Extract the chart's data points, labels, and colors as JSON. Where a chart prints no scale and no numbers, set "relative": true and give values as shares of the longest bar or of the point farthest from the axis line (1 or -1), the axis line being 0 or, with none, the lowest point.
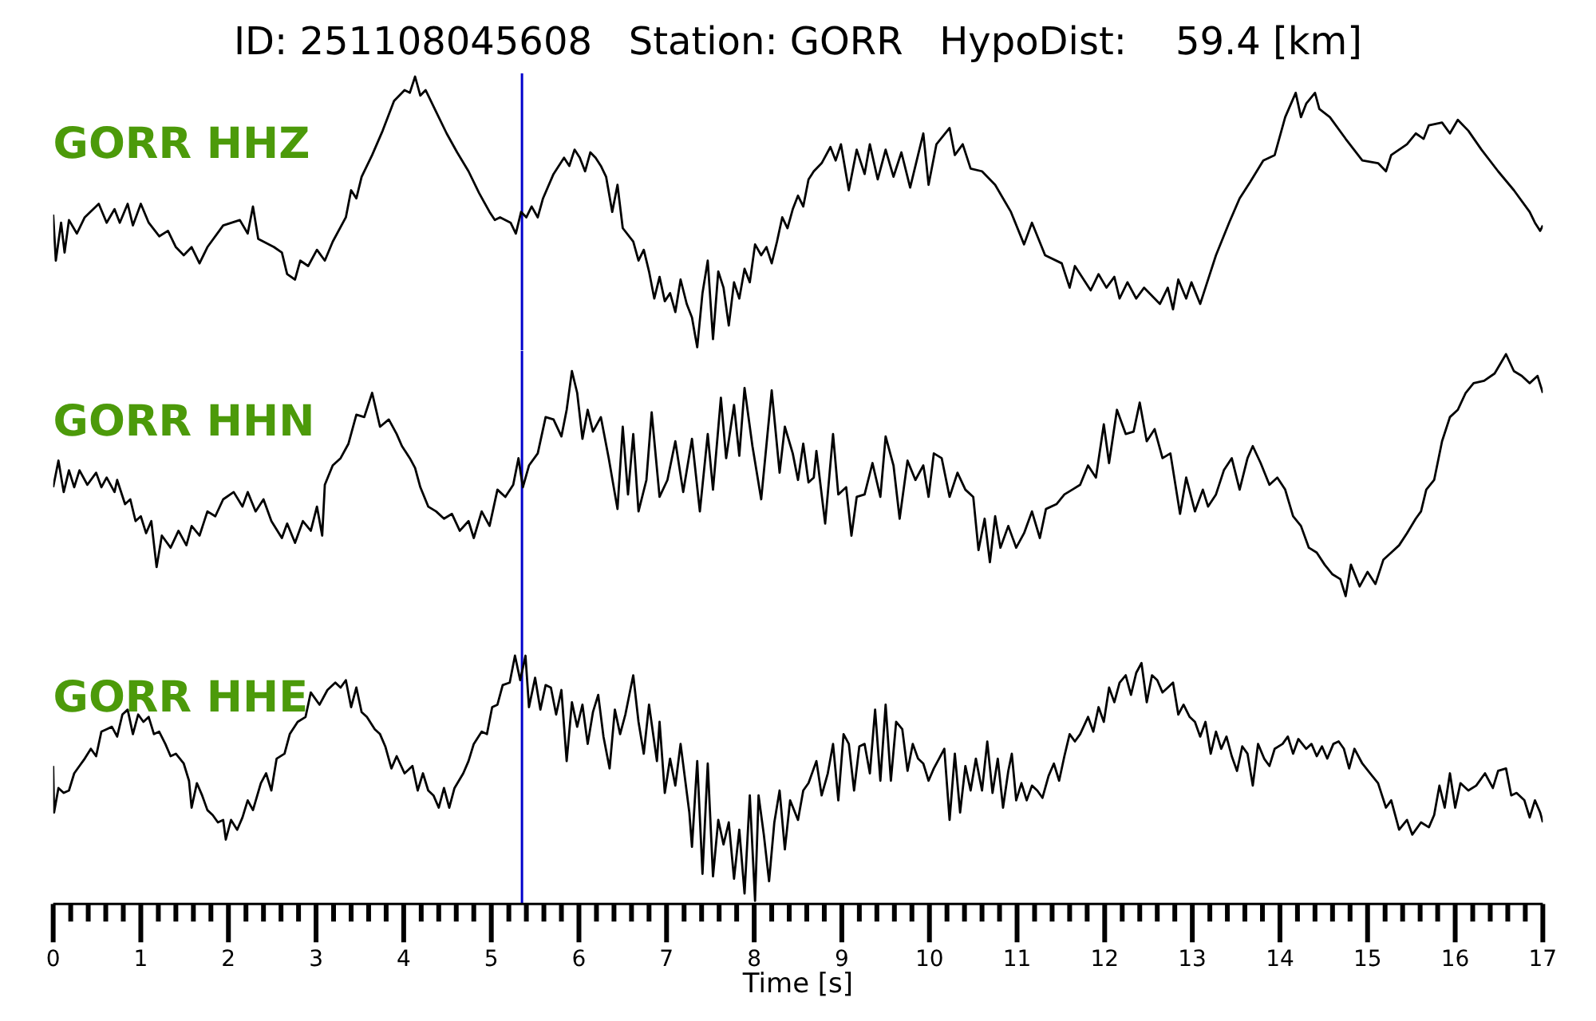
{
  "chart_data": [
    {
      "type": "line",
      "title": "ID: 251108045608   Station: GORR   HypoDist:    59.4 [km]",
      "annotations": [
        "GORR HHZ"
      ],
      "relative": true,
      "xlim": [
        0,
        17
      ],
      "tick_labels": false,
      "ref_lines": [
        {
          "axis": "x",
          "value": 5.35,
          "color": "#0000cc"
        }
      ],
      "series": [
        {
          "color": "#000000",
          "x": [
            0,
            0.03,
            0.09,
            0.13,
            0.18,
            0.27,
            0.36,
            0.52,
            0.61,
            0.7,
            0.76,
            0.85,
            0.91,
            1,
            1.09,
            1.21,
            1.31,
            1.4,
            1.49,
            1.58,
            1.67,
            1.76,
            1.94,
            2.13,
            2.22,
            2.28,
            2.34,
            2.52,
            2.61,
            2.67,
            2.76,
            2.82,
            2.91,
            3.01,
            3.1,
            3.19,
            3.34,
            3.4,
            3.46,
            3.52,
            3.64,
            3.76,
            3.89,
            4.01,
            4.07,
            4.13,
            4.19,
            4.25,
            4.37,
            4.49,
            4.61,
            4.74,
            4.86,
            4.98,
            5.04,
            5.1,
            5.22,
            5.28,
            5.34,
            5.4,
            5.46,
            5.53,
            5.59,
            5.71,
            5.83,
            5.89,
            5.95,
            6.01,
            6.07,
            6.13,
            6.19,
            6.25,
            6.31,
            6.38,
            6.44,
            6.5,
            6.62,
            6.68,
            6.74,
            6.8,
            6.86,
            6.92,
            6.98,
            7.04,
            7.1,
            7.16,
            7.23,
            7.29,
            7.35,
            7.41,
            7.47,
            7.53,
            7.59,
            7.65,
            7.71,
            7.77,
            7.83,
            7.89,
            7.95,
            8.01,
            8.08,
            8.14,
            8.2,
            8.26,
            8.32,
            8.38,
            8.44,
            8.5,
            8.56,
            8.62,
            8.68,
            8.77,
            8.87,
            8.93,
            8.99,
            9.08,
            9.17,
            9.26,
            9.32,
            9.41,
            9.5,
            9.59,
            9.68,
            9.78,
            9.87,
            9.93,
            9.99,
            10.08,
            10.23,
            10.29,
            10.38,
            10.47,
            10.6,
            10.75,
            10.93,
            11.08,
            11.17,
            11.32,
            11.51,
            11.6,
            11.66,
            11.84,
            11.93,
            12.02,
            12.11,
            12.17,
            12.26,
            12.36,
            12.45,
            12.63,
            12.72,
            12.78,
            12.84,
            12.93,
            12.99,
            13.09,
            13.15,
            13.27,
            13.42,
            13.54,
            13.66,
            13.81,
            13.94,
            14.06,
            14.18,
            14.24,
            14.3,
            14.4,
            14.45,
            14.57,
            14.75,
            14.94,
            15.12,
            15.21,
            15.27,
            15.45,
            15.55,
            15.64,
            15.7,
            15.85,
            15.94,
            16.03,
            16.15,
            16.3,
            16.49,
            16.67,
            16.85,
            16.91,
            16.97,
            17
          ],
          "values": [
            0.49,
            0.32,
            0.46,
            0.35,
            0.47,
            0.42,
            0.48,
            0.53,
            0.46,
            0.51,
            0.46,
            0.53,
            0.45,
            0.53,
            0.46,
            0.41,
            0.43,
            0.37,
            0.34,
            0.37,
            0.31,
            0.37,
            0.45,
            0.47,
            0.42,
            0.52,
            0.4,
            0.37,
            0.35,
            0.27,
            0.25,
            0.32,
            0.3,
            0.36,
            0.32,
            0.39,
            0.48,
            0.58,
            0.55,
            0.63,
            0.71,
            0.8,
            0.91,
            0.95,
            0.94,
            1,
            0.93,
            0.95,
            0.87,
            0.79,
            0.72,
            0.65,
            0.57,
            0.5,
            0.47,
            0.48,
            0.46,
            0.42,
            0.5,
            0.48,
            0.52,
            0.48,
            0.55,
            0.64,
            0.7,
            0.67,
            0.73,
            0.7,
            0.65,
            0.72,
            0.7,
            0.67,
            0.63,
            0.5,
            0.6,
            0.44,
            0.39,
            0.32,
            0.36,
            0.28,
            0.18,
            0.26,
            0.17,
            0.2,
            0.13,
            0.25,
            0.16,
            0.11,
            0,
            0.2,
            0.32,
            0.03,
            0.28,
            0.22,
            0.08,
            0.24,
            0.18,
            0.29,
            0.24,
            0.38,
            0.34,
            0.37,
            0.31,
            0.39,
            0.48,
            0.44,
            0.51,
            0.56,
            0.52,
            0.62,
            0.65,
            0.68,
            0.74,
            0.69,
            0.75,
            0.58,
            0.73,
            0.64,
            0.75,
            0.62,
            0.73,
            0.63,
            0.72,
            0.59,
            0.71,
            0.79,
            0.6,
            0.75,
            0.81,
            0.71,
            0.75,
            0.66,
            0.65,
            0.6,
            0.5,
            0.38,
            0.46,
            0.34,
            0.31,
            0.22,
            0.3,
            0.21,
            0.27,
            0.22,
            0.26,
            0.18,
            0.24,
            0.18,
            0.22,
            0.16,
            0.22,
            0.14,
            0.25,
            0.18,
            0.24,
            0.16,
            0.22,
            0.34,
            0.46,
            0.55,
            0.61,
            0.69,
            0.71,
            0.85,
            0.94,
            0.85,
            0.9,
            0.94,
            0.88,
            0.85,
            0.77,
            0.69,
            0.68,
            0.65,
            0.71,
            0.75,
            0.79,
            0.77,
            0.82,
            0.83,
            0.79,
            0.84,
            0.8,
            0.73,
            0.65,
            0.58,
            0.5,
            0.46,
            0.43,
            0.45
          ]
        }
      ]
    },
    {
      "type": "line",
      "annotations": [
        "GORR HHN"
      ],
      "relative": true,
      "xlim": [
        0,
        17
      ],
      "tick_labels": false,
      "ref_lines": [
        {
          "axis": "x",
          "value": 5.35,
          "color": "#0000cc"
        }
      ],
      "series": [
        {
          "color": "#000000",
          "x": [
            0,
            0.06,
            0.12,
            0.18,
            0.24,
            0.3,
            0.39,
            0.49,
            0.55,
            0.61,
            0.7,
            0.73,
            0.82,
            0.88,
            0.94,
            1,
            1.06,
            1.12,
            1.18,
            1.24,
            1.34,
            1.43,
            1.52,
            1.58,
            1.67,
            1.76,
            1.85,
            1.94,
            2.06,
            2.16,
            2.22,
            2.31,
            2.4,
            2.49,
            2.61,
            2.67,
            2.76,
            2.85,
            2.94,
            3.01,
            3.07,
            3.1,
            3.19,
            3.28,
            3.37,
            3.46,
            3.55,
            3.64,
            3.73,
            3.83,
            3.92,
            3.98,
            4.07,
            4.13,
            4.19,
            4.28,
            4.37,
            4.46,
            4.55,
            4.64,
            4.74,
            4.8,
            4.89,
            4.98,
            5.07,
            5.16,
            5.25,
            5.31,
            5.36,
            5.43,
            5.53,
            5.62,
            5.71,
            5.8,
            5.86,
            5.92,
            5.98,
            6.04,
            6.1,
            6.16,
            6.25,
            6.34,
            6.44,
            6.5,
            6.56,
            6.62,
            6.68,
            6.77,
            6.83,
            6.92,
            7.01,
            7.1,
            7.19,
            7.29,
            7.38,
            7.47,
            7.53,
            7.62,
            7.68,
            7.77,
            7.83,
            7.89,
            7.98,
            8.08,
            8.2,
            8.29,
            8.35,
            8.44,
            8.5,
            8.56,
            8.62,
            8.68,
            8.71,
            8.81,
            8.9,
            8.96,
            9.05,
            9.11,
            9.17,
            9.26,
            9.35,
            9.44,
            9.5,
            9.59,
            9.66,
            9.75,
            9.84,
            9.93,
            9.99,
            10.05,
            10.14,
            10.23,
            10.32,
            10.41,
            10.5,
            10.56,
            10.63,
            10.69,
            10.75,
            10.81,
            10.9,
            10.99,
            11.08,
            11.17,
            11.26,
            11.33,
            11.45,
            11.54,
            11.63,
            11.72,
            11.81,
            11.9,
            11.99,
            12.05,
            12.14,
            12.24,
            12.33,
            12.4,
            12.48,
            12.57,
            12.66,
            12.75,
            12.86,
            12.93,
            13.03,
            13.12,
            13.18,
            13.27,
            13.36,
            13.45,
            13.54,
            13.63,
            13.69,
            13.78,
            13.88,
            13.97,
            14.06,
            14.15,
            14.24,
            14.33,
            14.42,
            14.51,
            14.6,
            14.69,
            14.75,
            14.81,
            14.91,
            15,
            15.09,
            15.18,
            15.27,
            15.36,
            15.45,
            15.55,
            15.61,
            15.67,
            15.76,
            15.85,
            15.94,
            16.03,
            16.12,
            16.21,
            16.33,
            16.45,
            16.58,
            16.67,
            16.76,
            16.85,
            16.94,
            17
          ],
          "values": [
            0.45,
            0.56,
            0.43,
            0.52,
            0.45,
            0.52,
            0.46,
            0.51,
            0.45,
            0.49,
            0.43,
            0.48,
            0.38,
            0.4,
            0.31,
            0.33,
            0.26,
            0.31,
            0.12,
            0.25,
            0.2,
            0.27,
            0.21,
            0.29,
            0.25,
            0.35,
            0.33,
            0.4,
            0.43,
            0.37,
            0.43,
            0.35,
            0.4,
            0.31,
            0.24,
            0.3,
            0.22,
            0.31,
            0.27,
            0.37,
            0.25,
            0.46,
            0.54,
            0.57,
            0.63,
            0.75,
            0.74,
            0.84,
            0.7,
            0.73,
            0.67,
            0.62,
            0.57,
            0.53,
            0.45,
            0.37,
            0.35,
            0.32,
            0.34,
            0.27,
            0.31,
            0.24,
            0.35,
            0.29,
            0.44,
            0.41,
            0.46,
            0.57,
            0.45,
            0.54,
            0.59,
            0.74,
            0.73,
            0.66,
            0.77,
            0.93,
            0.84,
            0.65,
            0.77,
            0.68,
            0.74,
            0.57,
            0.36,
            0.7,
            0.42,
            0.67,
            0.35,
            0.48,
            0.76,
            0.41,
            0.48,
            0.64,
            0.43,
            0.65,
            0.35,
            0.67,
            0.44,
            0.82,
            0.57,
            0.79,
            0.58,
            0.86,
            0.62,
            0.4,
            0.85,
            0.51,
            0.7,
            0.59,
            0.48,
            0.63,
            0.47,
            0.49,
            0.6,
            0.3,
            0.67,
            0.42,
            0.45,
            0.25,
            0.41,
            0.42,
            0.55,
            0.41,
            0.66,
            0.54,
            0.32,
            0.56,
            0.48,
            0.54,
            0.41,
            0.59,
            0.57,
            0.41,
            0.51,
            0.44,
            0.41,
            0.19,
            0.32,
            0.14,
            0.33,
            0.2,
            0.29,
            0.2,
            0.26,
            0.35,
            0.24,
            0.36,
            0.38,
            0.42,
            0.44,
            0.46,
            0.54,
            0.49,
            0.71,
            0.55,
            0.77,
            0.67,
            0.68,
            0.8,
            0.64,
            0.69,
            0.57,
            0.59,
            0.34,
            0.49,
            0.35,
            0.44,
            0.37,
            0.42,
            0.52,
            0.57,
            0.44,
            0.57,
            0.62,
            0.55,
            0.46,
            0.49,
            0.44,
            0.33,
            0.29,
            0.2,
            0.18,
            0.13,
            0.09,
            0.07,
            0,
            0.13,
            0.04,
            0.1,
            0.05,
            0.15,
            0.18,
            0.21,
            0.26,
            0.32,
            0.35,
            0.44,
            0.48,
            0.64,
            0.74,
            0.77,
            0.84,
            0.88,
            0.89,
            0.92,
            1,
            0.93,
            0.91,
            0.88,
            0.91,
            0.84
          ]
        }
      ]
    },
    {
      "type": "line",
      "annotations": [
        "GORR HHE"
      ],
      "relative": true,
      "xlabel": "Time [s]",
      "xlim": [
        0,
        17
      ],
      "tick_labels": "x",
      "ref_lines": [
        {
          "axis": "x",
          "value": 5.35,
          "color": "#0000cc"
        }
      ],
      "xticks": [
        0,
        {
          "value": 0.2,
          "label": null
        },
        {
          "value": 0.4,
          "label": null
        },
        {
          "value": 0.6,
          "label": null
        },
        {
          "value": 0.8,
          "label": null
        },
        1,
        {
          "value": 1.2,
          "label": null
        },
        {
          "value": 1.4,
          "label": null
        },
        {
          "value": 1.6,
          "label": null
        },
        {
          "value": 1.8,
          "label": null
        },
        2,
        {
          "value": 2.2,
          "label": null
        },
        {
          "value": 2.4,
          "label": null
        },
        {
          "value": 2.6,
          "label": null
        },
        {
          "value": 2.8,
          "label": null
        },
        3,
        {
          "value": 3.2,
          "label": null
        },
        {
          "value": 3.4,
          "label": null
        },
        {
          "value": 3.6,
          "label": null
        },
        {
          "value": 3.8,
          "label": null
        },
        4,
        {
          "value": 4.2,
          "label": null
        },
        {
          "value": 4.4,
          "label": null
        },
        {
          "value": 4.6,
          "label": null
        },
        {
          "value": 4.8,
          "label": null
        },
        5,
        {
          "value": 5.2,
          "label": null
        },
        {
          "value": 5.4,
          "label": null
        },
        {
          "value": 5.6,
          "label": null
        },
        {
          "value": 5.8,
          "label": null
        },
        6,
        {
          "value": 6.2,
          "label": null
        },
        {
          "value": 6.4,
          "label": null
        },
        {
          "value": 6.6,
          "label": null
        },
        {
          "value": 6.8,
          "label": null
        },
        7,
        {
          "value": 7.2,
          "label": null
        },
        {
          "value": 7.4,
          "label": null
        },
        {
          "value": 7.6,
          "label": null
        },
        {
          "value": 7.8,
          "label": null
        },
        8,
        {
          "value": 8.2,
          "label": null
        },
        {
          "value": 8.4,
          "label": null
        },
        {
          "value": 8.6,
          "label": null
        },
        {
          "value": 8.8,
          "label": null
        },
        9,
        {
          "value": 9.2,
          "label": null
        },
        {
          "value": 9.4,
          "label": null
        },
        {
          "value": 9.6,
          "label": null
        },
        {
          "value": 9.8,
          "label": null
        },
        10,
        {
          "value": 10.2,
          "label": null
        },
        {
          "value": 10.4,
          "label": null
        },
        {
          "value": 10.6,
          "label": null
        },
        {
          "value": 10.8,
          "label": null
        },
        11,
        {
          "value": 11.2,
          "label": null
        },
        {
          "value": 11.4,
          "label": null
        },
        {
          "value": 11.6,
          "label": null
        },
        {
          "value": 11.8,
          "label": null
        },
        12,
        {
          "value": 12.2,
          "label": null
        },
        {
          "value": 12.4,
          "label": null
        },
        {
          "value": 12.6,
          "label": null
        },
        {
          "value": 12.8,
          "label": null
        },
        13,
        {
          "value": 13.2,
          "label": null
        },
        {
          "value": 13.4,
          "label": null
        },
        {
          "value": 13.6,
          "label": null
        },
        {
          "value": 13.8,
          "label": null
        },
        14,
        {
          "value": 14.2,
          "label": null
        },
        {
          "value": 14.4,
          "label": null
        },
        {
          "value": 14.6,
          "label": null
        },
        {
          "value": 14.8,
          "label": null
        },
        15,
        {
          "value": 15.2,
          "label": null
        },
        {
          "value": 15.4,
          "label": null
        },
        {
          "value": 15.6,
          "label": null
        },
        {
          "value": 15.8,
          "label": null
        },
        16,
        {
          "value": 16.2,
          "label": null
        },
        {
          "value": 16.4,
          "label": null
        },
        {
          "value": 16.6,
          "label": null
        },
        {
          "value": 16.8,
          "label": null
        },
        17
      ],
      "series": [
        {
          "color": "#000000",
          "x": [
            0,
            0.01,
            0.06,
            0.12,
            0.18,
            0.24,
            0.3,
            0.36,
            0.43,
            0.49,
            0.55,
            0.61,
            0.67,
            0.73,
            0.79,
            0.85,
            0.91,
            0.97,
            1.03,
            1.09,
            1.15,
            1.21,
            1.28,
            1.34,
            1.4,
            1.49,
            1.55,
            1.58,
            1.64,
            1.7,
            1.76,
            1.82,
            1.88,
            1.94,
            1.97,
            2.03,
            2.1,
            2.16,
            2.22,
            2.28,
            2.37,
            2.43,
            2.49,
            2.55,
            2.64,
            2.7,
            2.79,
            2.88,
            2.94,
            3.04,
            3.13,
            3.22,
            3.28,
            3.34,
            3.4,
            3.46,
            3.52,
            3.58,
            3.67,
            3.73,
            3.79,
            3.86,
            3.92,
            4.01,
            4.1,
            4.16,
            4.22,
            4.28,
            4.34,
            4.4,
            4.46,
            4.52,
            4.58,
            4.68,
            4.74,
            4.8,
            4.89,
            4.95,
            5.01,
            5.07,
            5.13,
            5.21,
            5.27,
            5.33,
            5.39,
            5.43,
            5.5,
            5.56,
            5.62,
            5.68,
            5.74,
            5.8,
            5.86,
            5.92,
            5.98,
            6.04,
            6.1,
            6.16,
            6.22,
            6.28,
            6.35,
            6.41,
            6.47,
            6.53,
            6.62,
            6.68,
            6.74,
            6.8,
            6.89,
            6.92,
            6.98,
            7.04,
            7.1,
            7.16,
            7.26,
            7.29,
            7.35,
            7.41,
            7.47,
            7.53,
            7.59,
            7.65,
            7.71,
            7.77,
            7.83,
            7.89,
            7.95,
            8.01,
            8.05,
            8.11,
            8.17,
            8.23,
            8.29,
            8.35,
            8.41,
            8.5,
            8.56,
            8.62,
            8.71,
            8.77,
            8.84,
            8.9,
            8.96,
            9.02,
            9.08,
            9.14,
            9.2,
            9.26,
            9.32,
            9.38,
            9.44,
            9.5,
            9.56,
            9.62,
            9.69,
            9.75,
            9.81,
            9.87,
            9.93,
            9.99,
            10.05,
            10.11,
            10.17,
            10.23,
            10.29,
            10.35,
            10.41,
            10.47,
            10.53,
            10.6,
            10.66,
            10.72,
            10.78,
            10.84,
            10.9,
            10.94,
            10.99,
            11.05,
            11.11,
            11.17,
            11.23,
            11.29,
            11.36,
            11.42,
            11.48,
            11.54,
            11.6,
            11.66,
            11.72,
            11.81,
            11.87,
            11.93,
            11.99,
            12.05,
            12.11,
            12.17,
            12.24,
            12.3,
            12.36,
            12.42,
            12.48,
            12.54,
            12.6,
            12.66,
            12.72,
            12.78,
            12.84,
            12.9,
            12.97,
            13.03,
            13.09,
            13.15,
            13.21,
            13.27,
            13.33,
            13.39,
            13.45,
            13.51,
            13.57,
            13.63,
            13.69,
            13.75,
            13.82,
            13.88,
            13.94,
            14.03,
            14.09,
            14.15,
            14.21,
            14.3,
            14.36,
            14.42,
            14.48,
            14.54,
            14.61,
            14.67,
            14.73,
            14.79,
            14.85,
            14.94,
            15.03,
            15.12,
            15.21,
            15.27,
            15.36,
            15.45,
            15.51,
            15.61,
            15.7,
            15.76,
            15.82,
            15.88,
            15.94,
            16,
            16.06,
            16.15,
            16.24,
            16.34,
            16.43,
            16.49,
            16.58,
            16.64,
            16.7,
            16.79,
            16.85,
            16.91,
            16.97,
            17
          ],
          "values": [
            0.55,
            0.36,
            0.46,
            0.44,
            0.45,
            0.52,
            0.55,
            0.58,
            0.62,
            0.59,
            0.69,
            0.7,
            0.71,
            0.67,
            0.76,
            0.78,
            0.68,
            0.76,
            0.73,
            0.75,
            0.68,
            0.69,
            0.64,
            0.59,
            0.6,
            0.56,
            0.49,
            0.38,
            0.48,
            0.43,
            0.37,
            0.35,
            0.32,
            0.33,
            0.25,
            0.33,
            0.29,
            0.34,
            0.41,
            0.37,
            0.48,
            0.52,
            0.45,
            0.58,
            0.6,
            0.68,
            0.73,
            0.75,
            0.85,
            0.8,
            0.86,
            0.89,
            0.87,
            0.9,
            0.79,
            0.87,
            0.77,
            0.75,
            0.7,
            0.68,
            0.63,
            0.54,
            0.59,
            0.52,
            0.55,
            0.45,
            0.52,
            0.45,
            0.43,
            0.38,
            0.46,
            0.38,
            0.46,
            0.52,
            0.57,
            0.64,
            0.69,
            0.68,
            0.79,
            0.8,
            0.88,
            0.89,
            1,
            0.9,
            1,
            0.79,
            0.91,
            0.78,
            0.88,
            0.87,
            0.76,
            0.86,
            0.57,
            0.81,
            0.71,
            0.8,
            0.64,
            0.77,
            0.84,
            0.67,
            0.54,
            0.78,
            0.68,
            0.76,
            0.92,
            0.73,
            0.6,
            0.8,
            0.57,
            0.73,
            0.44,
            0.58,
            0.47,
            0.64,
            0.36,
            0.22,
            0.57,
            0.11,
            0.56,
            0.1,
            0.33,
            0.23,
            0.32,
            0.09,
            0.29,
            0.03,
            0.43,
            0,
            0.43,
            0.27,
            0.08,
            0.32,
            0.45,
            0.21,
            0.41,
            0.33,
            0.45,
            0.48,
            0.57,
            0.43,
            0.52,
            0.64,
            0.41,
            0.68,
            0.64,
            0.45,
            0.63,
            0.64,
            0.52,
            0.78,
            0.49,
            0.8,
            0.49,
            0.73,
            0.7,
            0.53,
            0.64,
            0.58,
            0.56,
            0.49,
            0.54,
            0.58,
            0.62,
            0.33,
            0.6,
            0.36,
            0.55,
            0.45,
            0.58,
            0.45,
            0.65,
            0.44,
            0.58,
            0.38,
            0.53,
            0.6,
            0.41,
            0.48,
            0.41,
            0.47,
            0.45,
            0.42,
            0.51,
            0.56,
            0.49,
            0.59,
            0.68,
            0.65,
            0.68,
            0.75,
            0.69,
            0.79,
            0.73,
            0.87,
            0.81,
            0.89,
            0.92,
            0.84,
            0.93,
            0.97,
            0.81,
            0.92,
            0.9,
            0.85,
            0.87,
            0.89,
            0.76,
            0.8,
            0.75,
            0.73,
            0.67,
            0.73,
            0.6,
            0.69,
            0.62,
            0.67,
            0.59,
            0.53,
            0.63,
            0.6,
            0.47,
            0.64,
            0.58,
            0.55,
            0.62,
            0.64,
            0.67,
            0.6,
            0.66,
            0.62,
            0.64,
            0.59,
            0.63,
            0.58,
            0.64,
            0.65,
            0.62,
            0.54,
            0.62,
            0.56,
            0.52,
            0.48,
            0.38,
            0.41,
            0.29,
            0.33,
            0.27,
            0.32,
            0.3,
            0.35,
            0.47,
            0.38,
            0.52,
            0.38,
            0.48,
            0.45,
            0.47,
            0.52,
            0.46,
            0.53,
            0.54,
            0.43,
            0.44,
            0.41,
            0.34,
            0.41,
            0.36,
            0.32
          ]
        }
      ]
    }
  ]
}
